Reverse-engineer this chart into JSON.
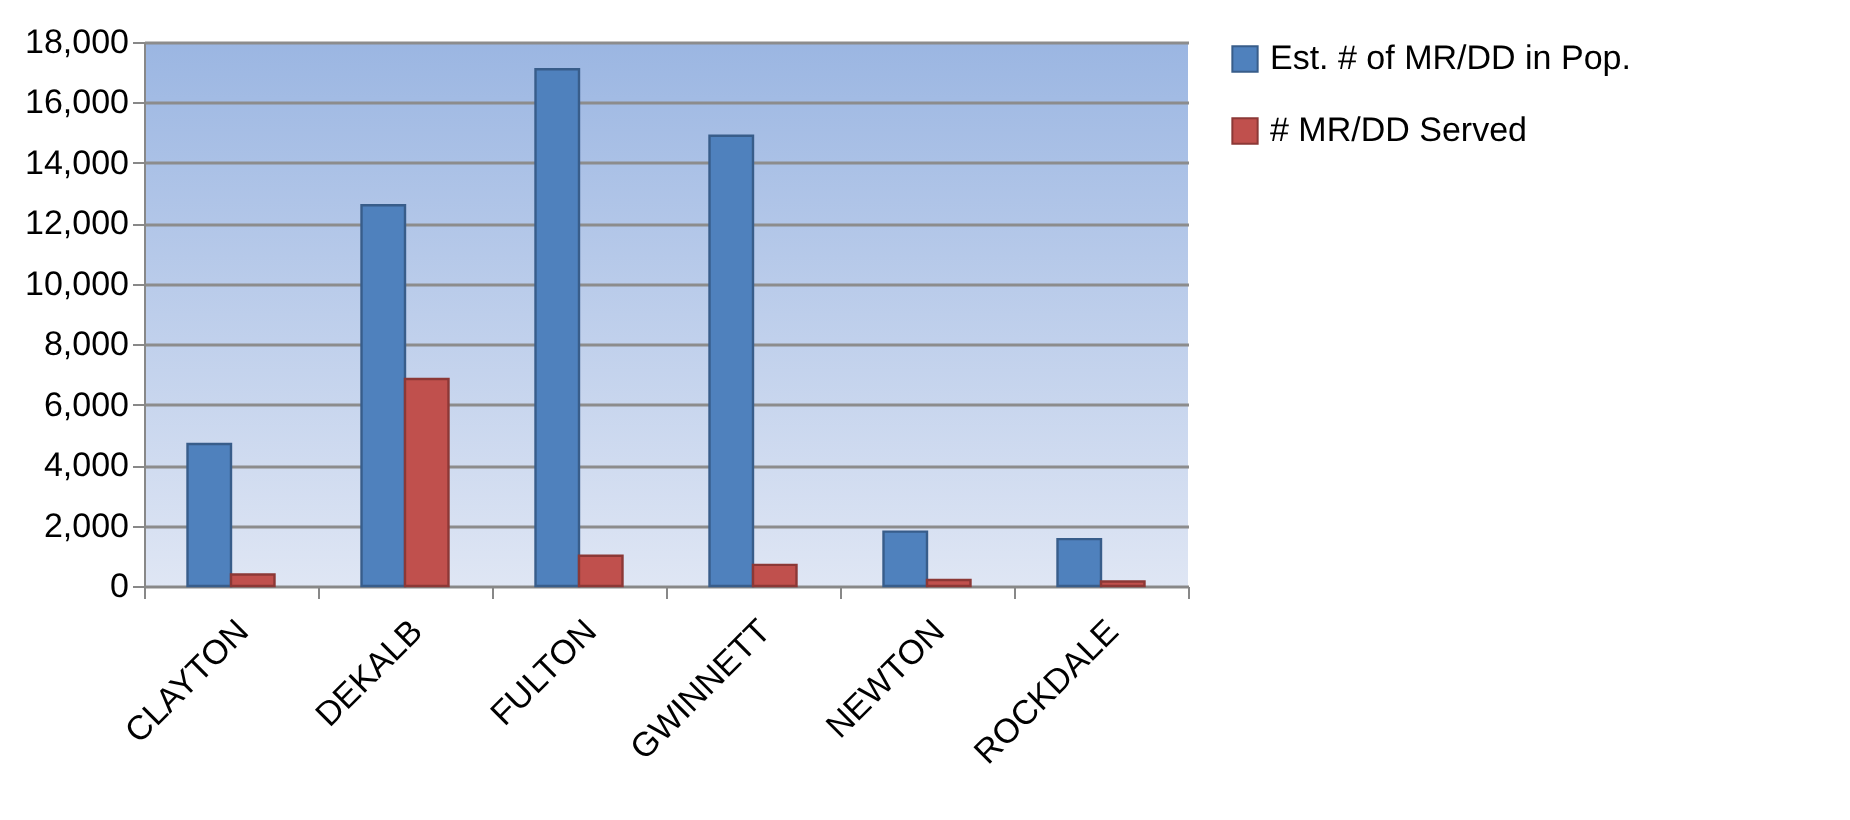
{
  "chart_data": {
    "type": "bar",
    "categories": [
      "CLAYTON",
      "DEKALB",
      "FULTON",
      "GWINNETT",
      "NEWTON",
      "ROCKDALE"
    ],
    "series": [
      {
        "name": "Est. # of MR/DD in Pop.",
        "color": "#4f81bd",
        "values": [
          4700,
          12600,
          17100,
          14900,
          1800,
          1550
        ]
      },
      {
        "name": "# MR/DD Served",
        "color": "#c0504d",
        "values": [
          380,
          6850,
          1000,
          700,
          200,
          150
        ]
      }
    ],
    "ylim": [
      0,
      18000
    ],
    "yticks": [
      {
        "value": 0,
        "label": "0"
      },
      {
        "value": 2000,
        "label": "2,000"
      },
      {
        "value": 4000,
        "label": "4,000"
      },
      {
        "value": 6000,
        "label": "6,000"
      },
      {
        "value": 8000,
        "label": "8,000"
      },
      {
        "value": 10000,
        "label": "10,000"
      },
      {
        "value": 12000,
        "label": "12,000"
      },
      {
        "value": 14000,
        "label": "14,000"
      },
      {
        "value": 16000,
        "label": "16,000"
      },
      {
        "value": 18000,
        "label": "18,000"
      }
    ],
    "grid": "y",
    "legend": "right"
  }
}
